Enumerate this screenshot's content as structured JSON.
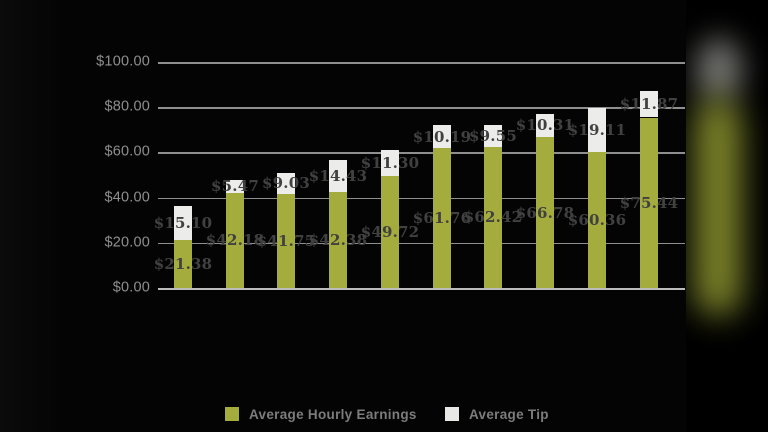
{
  "chart_data": {
    "type": "bar",
    "stacked": true,
    "title": "",
    "grid": true,
    "legend_position": "bottom",
    "bars_count": 10,
    "series": [
      {
        "name": "Average Hourly Earnings",
        "color": "#a3ac3c",
        "values": [
          21.38,
          42.18,
          41.75,
          42.38,
          49.72,
          61.76,
          62.42,
          66.78,
          60.36,
          75.44
        ],
        "labels": [
          "$21.38",
          "$42.18",
          "$41.75",
          "$42.38",
          "$49.72",
          "$61.76",
          "$62.42",
          "$66.78",
          "$60.36",
          "$75.44"
        ]
      },
      {
        "name": "Average Tip",
        "color": "#ececea",
        "values": [
          15.1,
          5.47,
          9.03,
          14.43,
          11.3,
          10.19,
          9.55,
          10.31,
          19.11,
          11.87
        ],
        "labels": [
          "$15.10",
          "$5.47",
          "$9.03",
          "$14.43",
          "$11.30",
          "$10.19",
          "$9.55",
          "$10.31",
          "$19.11",
          "$11.87"
        ]
      }
    ],
    "y_axis": {
      "range": [
        0,
        100
      ],
      "ticks": [
        {
          "value": 0,
          "label": "$0.00"
        },
        {
          "value": 20,
          "label": "$20.00"
        },
        {
          "value": 40,
          "label": "$40.00"
        },
        {
          "value": 60,
          "label": "$60.00"
        },
        {
          "value": 80,
          "label": "$80.00"
        },
        {
          "value": 100,
          "label": "$100.00"
        }
      ]
    },
    "legend": {
      "items": [
        {
          "label": "Average Hourly Earnings",
          "color": "#a3ac3c"
        },
        {
          "label": "Average Tip",
          "color": "#e8e8e6"
        }
      ]
    },
    "colors": {
      "background": "#040404",
      "gridline": "#a8a8a8",
      "axis_tick_text": "#8f8f8f",
      "bar_value_text": "#414141",
      "legend_text": "#7c7c7c"
    }
  }
}
